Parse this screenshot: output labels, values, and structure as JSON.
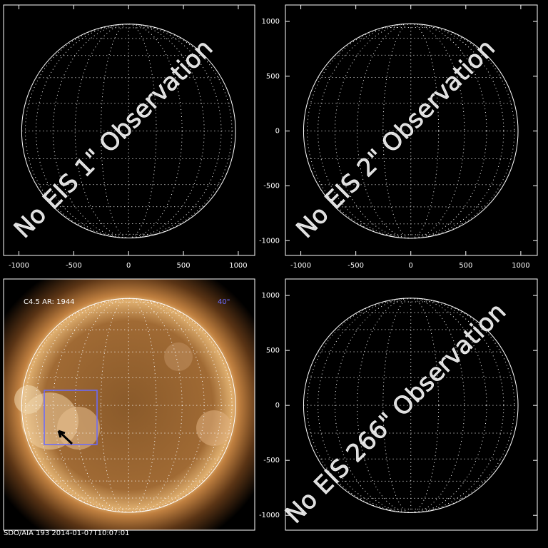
{
  "chart_data": [
    {
      "type": "disk",
      "overlay": "No EIS 1\" Observation",
      "xlim": [
        -1140,
        1150
      ],
      "ylim": [
        -1135,
        1150
      ],
      "xticks": [
        -1000,
        -500,
        0,
        500,
        1000
      ]
    },
    {
      "type": "disk",
      "overlay": "No EIS 2\" Observation",
      "xlim": [
        -1140,
        1150
      ],
      "ylim": [
        -1135,
        1150
      ],
      "xticks": [
        -1000,
        -500,
        0,
        500,
        1000
      ],
      "yticks": [
        -1000,
        -500,
        0,
        500,
        1000
      ]
    },
    {
      "type": "sun",
      "label": "C4.5 AR: 1944",
      "annotation": "40\"",
      "footer": "SDO/AIA 193   2014-01-07T10:07:01",
      "xlim": [
        -1140,
        1150
      ],
      "ylim": [
        -1135,
        1150
      ]
    },
    {
      "type": "disk",
      "overlay": "No EIS 266\" Observation",
      "xlim": [
        -1140,
        1150
      ],
      "ylim": [
        -1135,
        1150
      ],
      "yticks": [
        -1000,
        -500,
        0,
        500,
        1000
      ]
    }
  ]
}
